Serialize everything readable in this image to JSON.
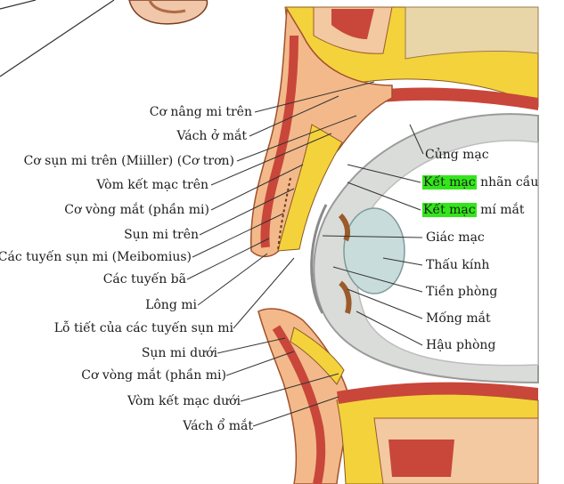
{
  "diagram": {
    "left_labels": [
      "Cơ nâng mi trên",
      "Vách ở mắt",
      "Cơ sụn mi trên (Miiller) (Cơ trơn)",
      "Vòm kết mạc trên",
      "Cơ vòng mắt (phần mi)",
      "Sụn mi trên",
      "Các tuyến sụn mi (Meibomius)",
      "Các tuyến bã",
      "Lông mi",
      "Lỗ tiết của các tuyến sụn mi",
      "Sụn mi dưới",
      "Cơ vòng mắt (phần mi)",
      "Vòm kết mạc dưới",
      "Vách ổ mắt"
    ],
    "right_labels": {
      "cung_mac": "Củng mạc",
      "ket_mac_nhan_cau_hl": "Kết mạc",
      "ket_mac_nhan_cau_rest": " nhãn cầu",
      "ket_mac_mi_mat_hl": "Kết mạc",
      "ket_mac_mi_mat_rest": " mí mắt",
      "giac_mac": "Giác mạc",
      "thau_kinh": "Thấu kính",
      "tien_phong": "Tiền phòng",
      "mong_mat": "Mống mắt",
      "hau_phong": "Hậu phòng"
    },
    "colors": {
      "highlight": "#33e61a",
      "fat": "#f4d23c",
      "muscle": "#c9463a",
      "skin": "#f3b98a",
      "sclera": "#d9dcd9",
      "cornea": "#c8dcdc"
    }
  }
}
